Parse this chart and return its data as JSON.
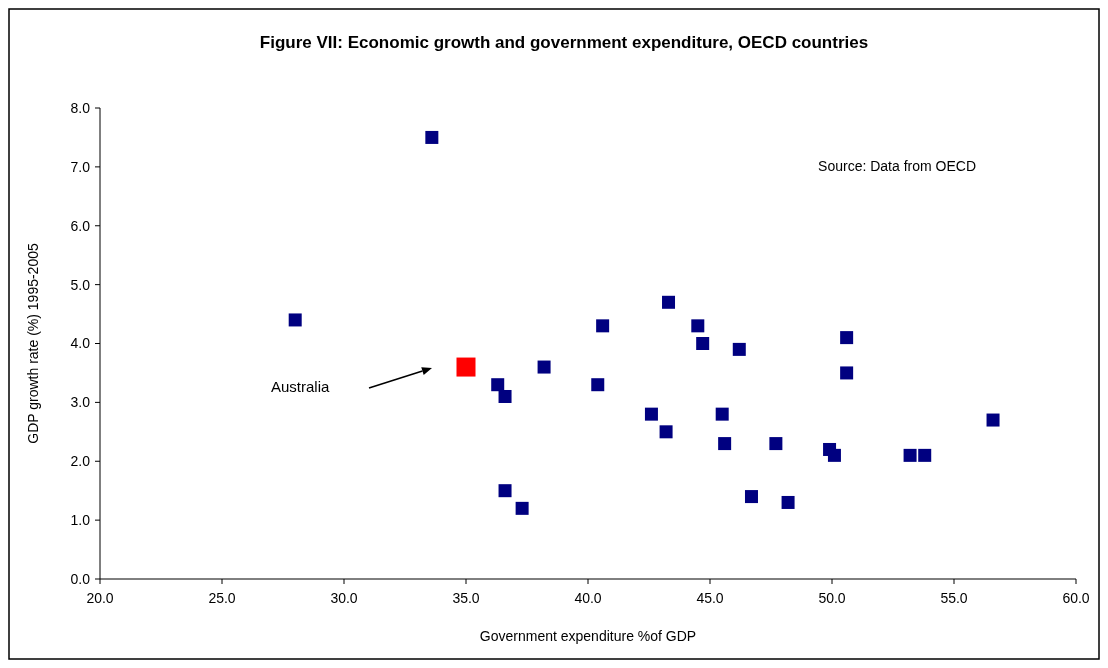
{
  "chart_data": {
    "type": "scatter",
    "title": "Figure VII: Economic growth and government expenditure, OECD countries",
    "xlabel": "Government expenditure %of GDP",
    "ylabel": "GDP growth rate (%) 1995-2005",
    "series": [
      {
        "color": "#000080",
        "x": [
          28.0,
          33.6,
          36.3,
          36.6,
          36.6,
          37.3,
          38.2,
          40.4,
          40.6,
          42.6,
          43.3,
          43.2,
          44.5,
          44.7,
          45.5,
          45.6,
          46.2,
          46.7,
          47.7,
          48.2,
          49.9,
          50.1,
          50.6,
          50.6,
          53.2,
          53.8,
          56.6
        ],
        "values": [
          4.4,
          7.5,
          3.3,
          3.1,
          1.5,
          1.2,
          3.6,
          3.3,
          4.3,
          2.8,
          4.7,
          2.5,
          4.3,
          4.0,
          2.8,
          2.3,
          3.9,
          1.4,
          2.3,
          1.3,
          2.2,
          2.1,
          4.1,
          3.5,
          2.1,
          2.1,
          2.7
        ]
      },
      {
        "color": "#ff0000",
        "x": [
          35.0
        ],
        "values": [
          3.6
        ]
      }
    ],
    "marker": "square",
    "grid": false,
    "xlim": [
      20,
      60
    ],
    "xticks": [
      {
        "value": 20,
        "label": "20.0"
      },
      {
        "value": 25,
        "label": "25.0"
      },
      {
        "value": 30,
        "label": "30.0"
      },
      {
        "value": 35,
        "label": "35.0"
      },
      {
        "value": 40,
        "label": "40.0"
      },
      {
        "value": 45,
        "label": "45.0"
      },
      {
        "value": 50,
        "label": "50.0"
      },
      {
        "value": 55,
        "label": "55.0"
      },
      {
        "value": 60,
        "label": "60.0"
      }
    ],
    "ylim": [
      0,
      8
    ],
    "yticks": [
      {
        "value": 0,
        "label": "0.0"
      },
      {
        "value": 1,
        "label": "1.0"
      },
      {
        "value": 2,
        "label": "2.0"
      },
      {
        "value": 3,
        "label": "3.0"
      },
      {
        "value": 4,
        "label": "4.0"
      },
      {
        "value": 5,
        "label": "5.0"
      },
      {
        "value": 6,
        "label": "6.0"
      },
      {
        "value": 7,
        "label": "7.0"
      },
      {
        "value": 8,
        "label": "8.0"
      }
    ],
    "annotations": [
      "Source:  Data from OECD",
      "Australia"
    ]
  }
}
